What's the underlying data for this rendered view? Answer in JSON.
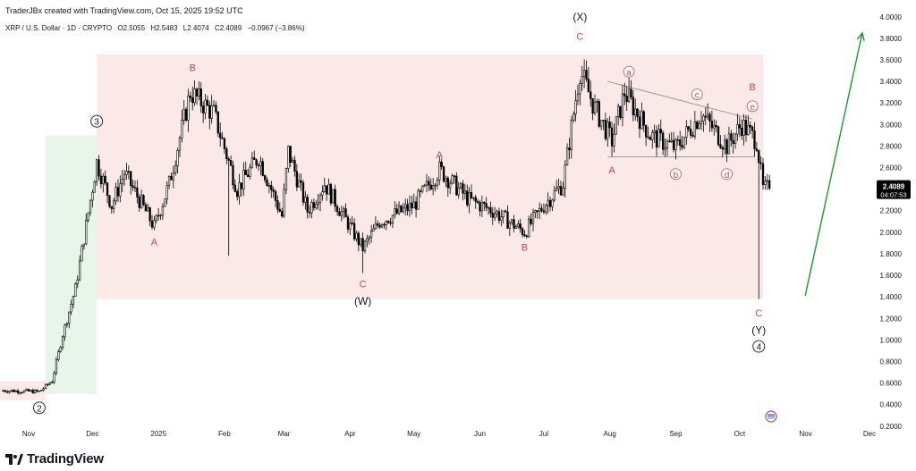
{
  "header": {
    "credit": "TraderJBx created with TradingView.com, Oct 15, 2025 19:52 UTC",
    "symbol": "XRP / U.S. Dollar · 1D · CRYPTO",
    "open": "O2.5055",
    "high": "H2.5483",
    "low": "L2.4074",
    "close": "C2.4089",
    "change": "−0.0967 (−3.86%)"
  },
  "branding": {
    "name": "TradingView"
  },
  "price_badge": {
    "price": "2.4089",
    "countdown": "04:07:53",
    "color": "#000000"
  },
  "colors": {
    "up": "#ffffff",
    "down": "#000000",
    "wave_label": "#c2455b",
    "arrow": "#2e9a3e",
    "zone_red": "#fbe9e7",
    "zone_green": "#e8f5e9"
  },
  "chart_data": {
    "type": "candlestick",
    "title": "",
    "xlabel": "",
    "ylabel": "",
    "ylim": [
      0.14,
      4.04
    ],
    "y_ticks": [
      "0.2000",
      "0.4000",
      "0.6000",
      "0.8000",
      "1.0000",
      "1.2000",
      "1.4000",
      "1.6000",
      "1.8000",
      "2.0000",
      "2.2000",
      "2.4000",
      "2.6000",
      "2.8000",
      "3.0000",
      "3.2000",
      "3.4000",
      "3.6000",
      "3.8000",
      "4.0000"
    ],
    "x_ticks": [
      "Nov",
      "Dec",
      "2025",
      "Feb",
      "Mar",
      "Apr",
      "May",
      "Jun",
      "Jul",
      "Aug",
      "Sep",
      "Oct",
      "Nov",
      "Dec"
    ],
    "waypoints": [
      {
        "d": "2024-10-20",
        "p": 0.53
      },
      {
        "d": "2024-11-06",
        "p": 0.52
      },
      {
        "d": "2024-11-12",
        "p": 0.62
      },
      {
        "d": "2024-11-17",
        "p": 1.05
      },
      {
        "d": "2024-11-23",
        "p": 1.48
      },
      {
        "d": "2024-12-03",
        "p": 2.65
      },
      {
        "d": "2024-12-10",
        "p": 2.25
      },
      {
        "d": "2024-12-16",
        "p": 2.55
      },
      {
        "d": "2024-12-30",
        "p": 2.05
      },
      {
        "d": "2025-01-06",
        "p": 2.45
      },
      {
        "d": "2025-01-16",
        "p": 3.3
      },
      {
        "d": "2025-01-27",
        "p": 3.1
      },
      {
        "d": "2025-02-07",
        "p": 2.4
      },
      {
        "d": "2025-02-17",
        "p": 2.7
      },
      {
        "d": "2025-02-28",
        "p": 2.15
      },
      {
        "d": "2025-03-03",
        "p": 2.75
      },
      {
        "d": "2025-03-12",
        "p": 2.2
      },
      {
        "d": "2025-03-20",
        "p": 2.45
      },
      {
        "d": "2025-04-07",
        "p": 1.85
      },
      {
        "d": "2025-04-15",
        "p": 2.1
      },
      {
        "d": "2025-05-01",
        "p": 2.25
      },
      {
        "d": "2025-05-13",
        "p": 2.58
      },
      {
        "d": "2025-05-27",
        "p": 2.3
      },
      {
        "d": "2025-06-07",
        "p": 2.2
      },
      {
        "d": "2025-06-22",
        "p": 2.0
      },
      {
        "d": "2025-07-01",
        "p": 2.25
      },
      {
        "d": "2025-07-10",
        "p": 2.45
      },
      {
        "d": "2025-07-18",
        "p": 3.5
      },
      {
        "d": "2025-07-25",
        "p": 3.15
      },
      {
        "d": "2025-08-02",
        "p": 2.85
      },
      {
        "d": "2025-08-08",
        "p": 3.3
      },
      {
        "d": "2025-08-20",
        "p": 2.9
      },
      {
        "d": "2025-09-01",
        "p": 2.78
      },
      {
        "d": "2025-09-13",
        "p": 3.1
      },
      {
        "d": "2025-09-25",
        "p": 2.8
      },
      {
        "d": "2025-10-02",
        "p": 3.0
      },
      {
        "d": "2025-10-09",
        "p": 2.85
      },
      {
        "d": "2025-10-12",
        "p": 2.4
      },
      {
        "d": "2025-10-15",
        "p": 2.41
      }
    ],
    "wicks": [
      {
        "d": "2025-02-03",
        "low": 1.78
      },
      {
        "d": "2025-04-07",
        "low": 1.62
      },
      {
        "d": "2025-10-10",
        "low": 1.38
      }
    ],
    "zones": [
      {
        "start": "2024-12-03",
        "end": "2025-10-12",
        "low": 1.38,
        "high": 3.65,
        "color": "zone_red"
      },
      {
        "start": "2024-11-09",
        "end": "2024-12-03",
        "low": 0.5,
        "high": 2.9,
        "color": "zone_green"
      },
      {
        "start": "2024-10-17",
        "end": "2024-11-09",
        "low": 0.44,
        "high": 0.62,
        "color": "zone_red"
      }
    ],
    "lines": [
      {
        "d1": "2025-07-31",
        "p1": 3.4,
        "d2": "2025-10-07",
        "p2": 3.05,
        "color": "#9e9e9e"
      },
      {
        "d1": "2025-07-31",
        "p1": 2.7,
        "d2": "2025-10-08",
        "p2": 2.7,
        "color": "#9e9e9e"
      }
    ],
    "arrow": {
      "d1": "2025-10-15",
      "p1": 1.41,
      "d2": "2025-11-15",
      "p2": 3.85
    },
    "annotations": [
      {
        "text": "(X)",
        "d": "2025-07-18",
        "p": 4.0,
        "style": "plain"
      },
      {
        "text": "C",
        "d": "2025-07-18",
        "p": 3.82,
        "style": "red"
      },
      {
        "text": "B",
        "d": "2025-01-17",
        "p": 3.53,
        "style": "red"
      },
      {
        "text": "3",
        "d": "2024-12-03",
        "p": 3.03,
        "style": "circle"
      },
      {
        "text": "A",
        "d": "2024-12-30",
        "p": 1.91,
        "style": "red"
      },
      {
        "text": "A",
        "d": "2025-05-13",
        "p": 2.72,
        "style": "red"
      },
      {
        "text": "C",
        "d": "2025-04-07",
        "p": 1.52,
        "style": "red"
      },
      {
        "text": "(W)",
        "d": "2025-04-07",
        "p": 1.36,
        "style": "plain"
      },
      {
        "text": "B",
        "d": "2025-06-22",
        "p": 1.86,
        "style": "red"
      },
      {
        "text": "A",
        "d": "2025-08-02",
        "p": 2.58,
        "style": "red"
      },
      {
        "text": "a",
        "d": "2025-08-10",
        "p": 3.49,
        "style": "redcircle"
      },
      {
        "text": "b",
        "d": "2025-09-01",
        "p": 2.54,
        "style": "redcircle"
      },
      {
        "text": "c",
        "d": "2025-09-11",
        "p": 3.28,
        "style": "redcircle"
      },
      {
        "text": "d",
        "d": "2025-09-25",
        "p": 2.54,
        "style": "redcircle"
      },
      {
        "text": "B",
        "d": "2025-10-07",
        "p": 3.35,
        "style": "red"
      },
      {
        "text": "e",
        "d": "2025-10-07",
        "p": 3.17,
        "style": "redcircle"
      },
      {
        "text": "C",
        "d": "2025-10-10",
        "p": 1.25,
        "style": "red"
      },
      {
        "text": "(Y)",
        "d": "2025-10-10",
        "p": 1.09,
        "style": "plain"
      },
      {
        "text": "4",
        "d": "2025-10-10",
        "p": 0.94,
        "style": "circle"
      },
      {
        "text": "2",
        "d": "2024-11-06",
        "p": 0.37,
        "style": "circle"
      }
    ]
  }
}
